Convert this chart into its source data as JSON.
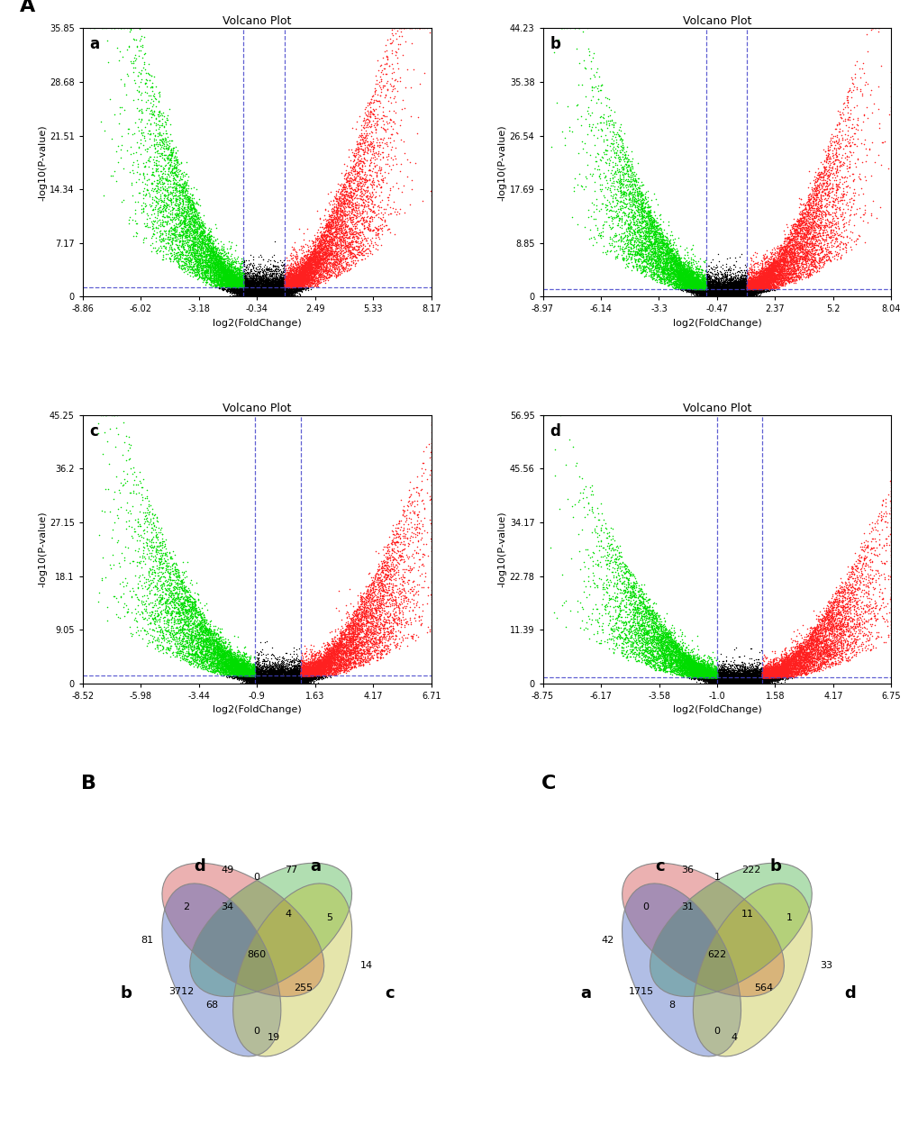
{
  "volcano_plots": [
    {
      "label": "a",
      "title": "Volcano Plot",
      "xlabel": "log2(FoldChange)",
      "ylabel": "-log10(P-value)",
      "xlim": [
        -8.86,
        8.17
      ],
      "ylim": [
        0,
        35.85
      ],
      "xticks": [
        -8.86,
        -6.02,
        -3.18,
        -0.34,
        2.49,
        5.33,
        8.17
      ],
      "yticks": [
        0,
        7.17,
        14.34,
        21.51,
        28.68,
        35.85
      ],
      "vline1": -1.0,
      "vline2": 1.0,
      "hline_y": 1.3,
      "fc_thresh": 1.0,
      "pval_thresh": 1.3
    },
    {
      "label": "b",
      "title": "Volcano Plot",
      "xlabel": "log2(FoldChange)",
      "ylabel": "-log10(P-value)",
      "xlim": [
        -8.97,
        8.04
      ],
      "ylim": [
        0,
        44.23
      ],
      "xticks": [
        -8.97,
        -6.14,
        -3.3,
        -0.47,
        2.37,
        5.2,
        8.04
      ],
      "yticks": [
        0,
        8.85,
        17.69,
        26.54,
        35.38,
        44.23
      ],
      "vline1": -1.0,
      "vline2": 1.0,
      "hline_y": 1.3,
      "fc_thresh": 1.0,
      "pval_thresh": 1.3
    },
    {
      "label": "c",
      "title": "Volcano Plot",
      "xlabel": "log2(FoldChange)",
      "ylabel": "-log10(P-value)",
      "xlim": [
        -8.52,
        6.71
      ],
      "ylim": [
        0,
        45.25
      ],
      "xticks": [
        -8.52,
        -5.98,
        -3.44,
        -0.9,
        1.63,
        4.17,
        6.71
      ],
      "yticks": [
        0,
        9.05,
        18.1,
        27.15,
        36.2,
        45.25
      ],
      "vline1": -1.0,
      "vline2": 1.0,
      "hline_y": 1.3,
      "fc_thresh": 1.0,
      "pval_thresh": 1.3
    },
    {
      "label": "d",
      "title": "Volcano Plot",
      "xlabel": "log2(FoldChange)",
      "ylabel": "-log10(P-value)",
      "xlim": [
        -8.75,
        6.75
      ],
      "ylim": [
        0,
        56.95
      ],
      "xticks": [
        -8.75,
        -6.17,
        -3.58,
        -1.0,
        1.58,
        4.17,
        6.75
      ],
      "yticks": [
        0,
        11.39,
        22.78,
        34.17,
        45.56,
        56.95
      ],
      "vline1": -1.0,
      "vline2": 1.0,
      "hline_y": 1.3,
      "fc_thresh": 1.0,
      "pval_thresh": 1.3
    }
  ],
  "venn_B": {
    "numbers": {
      "only_d": "49",
      "only_a": "77",
      "only_b": "81",
      "only_c": "14",
      "d_a": "0",
      "b_d": "2",
      "a_c": "5",
      "b_d_a": "34",
      "d_a_c": "4",
      "b_c": "0",
      "all4": "860",
      "b_a": "3712",
      "b_a_c": "255",
      "b_d_c": "68",
      "d_c": "19"
    }
  },
  "venn_C": {
    "numbers": {
      "only_c": "36",
      "only_b": "222",
      "only_a": "42",
      "only_d": "33",
      "c_b": "1",
      "a_c": "0",
      "b_d": "1",
      "a_c_b": "31",
      "c_b_d": "11",
      "a_d": "0",
      "all4": "622",
      "a_b": "1715",
      "a_b_d": "564",
      "a_c_d": "8",
      "c_d": "4"
    }
  }
}
